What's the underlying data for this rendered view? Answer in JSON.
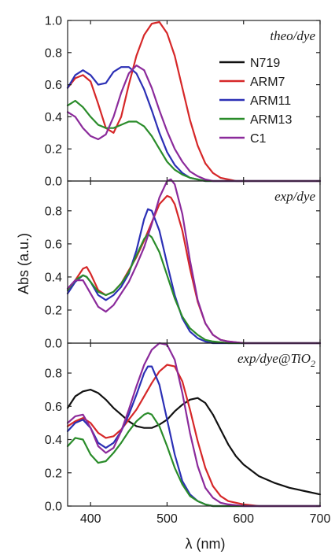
{
  "chart_data": {
    "type": "line",
    "xlabel": "λ (nm)",
    "ylabel": "Abs (a.u.)",
    "xlim": [
      370,
      700
    ],
    "xticks": [
      400,
      500,
      600,
      700
    ],
    "legend": [
      {
        "name": "N719",
        "color": "#111111"
      },
      {
        "name": "ARM7",
        "color": "#d62728"
      },
      {
        "name": "ARM11",
        "color": "#2b2fb5"
      },
      {
        "name": "ARM13",
        "color": "#2a8c2a"
      },
      {
        "name": "C1",
        "color": "#8b2a9b"
      }
    ],
    "legend_position": "top-right of top panel",
    "panels": [
      {
        "title": "theo/dye",
        "ylim": [
          0,
          1.0
        ],
        "yticks": [
          "0.0",
          "0.2",
          "0.4",
          "0.6",
          "0.8",
          "1.0"
        ],
        "series": [
          {
            "name": "ARM7",
            "x": [
              370,
              380,
              390,
              400,
              410,
              420,
              430,
              440,
              450,
              460,
              470,
              480,
              490,
              500,
              510,
              520,
              530,
              540,
              550,
              560,
              570,
              580,
              590,
              600,
              620,
              650,
              700
            ],
            "y": [
              0.58,
              0.64,
              0.66,
              0.62,
              0.48,
              0.33,
              0.3,
              0.4,
              0.6,
              0.78,
              0.91,
              0.98,
              0.99,
              0.92,
              0.78,
              0.58,
              0.38,
              0.22,
              0.11,
              0.05,
              0.02,
              0.01,
              0,
              0,
              0,
              0,
              0
            ]
          },
          {
            "name": "ARM11",
            "x": [
              370,
              380,
              390,
              400,
              410,
              420,
              430,
              440,
              450,
              460,
              470,
              480,
              490,
              500,
              510,
              520,
              530,
              540,
              550,
              560,
              570,
              580,
              600,
              700
            ],
            "y": [
              0.58,
              0.66,
              0.69,
              0.66,
              0.6,
              0.61,
              0.68,
              0.71,
              0.71,
              0.67,
              0.57,
              0.44,
              0.3,
              0.18,
              0.1,
              0.05,
              0.02,
              0.01,
              0,
              0,
              0,
              0,
              0,
              0
            ]
          },
          {
            "name": "ARM13",
            "x": [
              370,
              380,
              390,
              400,
              410,
              420,
              430,
              440,
              450,
              460,
              470,
              480,
              490,
              500,
              510,
              520,
              530,
              540,
              550,
              560,
              580,
              600,
              700
            ],
            "y": [
              0.47,
              0.5,
              0.46,
              0.4,
              0.35,
              0.33,
              0.33,
              0.35,
              0.37,
              0.37,
              0.34,
              0.28,
              0.2,
              0.12,
              0.07,
              0.04,
              0.02,
              0.01,
              0,
              0,
              0,
              0,
              0
            ]
          },
          {
            "name": "C1",
            "x": [
              370,
              380,
              390,
              400,
              410,
              420,
              430,
              440,
              450,
              460,
              470,
              480,
              490,
              500,
              510,
              520,
              530,
              540,
              550,
              560,
              570,
              580,
              600,
              700
            ],
            "y": [
              0.43,
              0.4,
              0.33,
              0.28,
              0.26,
              0.29,
              0.4,
              0.55,
              0.67,
              0.72,
              0.69,
              0.58,
              0.44,
              0.31,
              0.2,
              0.12,
              0.06,
              0.03,
              0.01,
              0,
              0,
              0,
              0,
              0
            ]
          }
        ]
      },
      {
        "title": "exp/dye",
        "ylim": [
          0,
          0.98
        ],
        "yticks": [
          "0.0",
          "0.2",
          "0.4",
          "0.6",
          "0.8"
        ],
        "series": [
          {
            "name": "ARM7",
            "x": [
              370,
              380,
              390,
              395,
              400,
              410,
              420,
              430,
              440,
              450,
              460,
              470,
              480,
              490,
              500,
              505,
              510,
              520,
              530,
              540,
              550,
              560,
              570,
              580,
              600,
              700
            ],
            "y": [
              0.3,
              0.38,
              0.45,
              0.46,
              0.42,
              0.32,
              0.29,
              0.31,
              0.36,
              0.44,
              0.52,
              0.62,
              0.73,
              0.84,
              0.89,
              0.88,
              0.84,
              0.68,
              0.45,
              0.25,
              0.12,
              0.05,
              0.02,
              0.01,
              0,
              0
            ]
          },
          {
            "name": "ARM11",
            "x": [
              370,
              380,
              390,
              395,
              400,
              410,
              420,
              430,
              440,
              450,
              460,
              470,
              475,
              480,
              490,
              500,
              510,
              520,
              530,
              540,
              550,
              560,
              580,
              600,
              700
            ],
            "y": [
              0.3,
              0.37,
              0.41,
              0.4,
              0.37,
              0.29,
              0.26,
              0.29,
              0.34,
              0.42,
              0.56,
              0.75,
              0.81,
              0.8,
              0.68,
              0.48,
              0.29,
              0.15,
              0.07,
              0.03,
              0.01,
              0,
              0,
              0,
              0
            ]
          },
          {
            "name": "ARM13",
            "x": [
              370,
              380,
              390,
              395,
              400,
              410,
              420,
              430,
              440,
              450,
              460,
              470,
              475,
              480,
              490,
              500,
              510,
              520,
              530,
              540,
              550,
              560,
              580,
              600,
              700
            ],
            "y": [
              0.32,
              0.38,
              0.41,
              0.4,
              0.37,
              0.31,
              0.29,
              0.31,
              0.36,
              0.43,
              0.53,
              0.63,
              0.66,
              0.64,
              0.55,
              0.41,
              0.27,
              0.16,
              0.09,
              0.05,
              0.02,
              0.01,
              0,
              0,
              0
            ]
          },
          {
            "name": "C1",
            "x": [
              370,
              380,
              390,
              400,
              410,
              420,
              430,
              440,
              450,
              460,
              470,
              480,
              490,
              500,
              505,
              510,
              520,
              530,
              540,
              550,
              560,
              570,
              580,
              600,
              700
            ],
            "y": [
              0.33,
              0.38,
              0.38,
              0.3,
              0.22,
              0.19,
              0.23,
              0.3,
              0.37,
              0.47,
              0.58,
              0.72,
              0.88,
              0.98,
              0.99,
              0.96,
              0.78,
              0.5,
              0.26,
              0.12,
              0.05,
              0.02,
              0.01,
              0,
              0
            ]
          }
        ]
      },
      {
        "title": "exp/dye@TiO",
        "title_subscript": "2",
        "ylim": [
          0,
          0.98
        ],
        "yticks": [
          "0.0",
          "0.2",
          "0.4",
          "0.6",
          "0.8"
        ],
        "series": [
          {
            "name": "N719",
            "x": [
              370,
              380,
              390,
              400,
              410,
              420,
              430,
              440,
              450,
              460,
              470,
              480,
              490,
              500,
              510,
              520,
              530,
              540,
              550,
              560,
              570,
              580,
              590,
              600,
              620,
              640,
              660,
              680,
              700
            ],
            "y": [
              0.59,
              0.66,
              0.69,
              0.7,
              0.68,
              0.64,
              0.59,
              0.55,
              0.51,
              0.48,
              0.47,
              0.47,
              0.49,
              0.52,
              0.57,
              0.61,
              0.64,
              0.65,
              0.62,
              0.55,
              0.46,
              0.37,
              0.3,
              0.25,
              0.18,
              0.14,
              0.11,
              0.09,
              0.07
            ]
          },
          {
            "name": "ARM7",
            "x": [
              370,
              380,
              390,
              400,
              410,
              420,
              430,
              440,
              450,
              460,
              470,
              480,
              490,
              500,
              510,
              520,
              530,
              540,
              550,
              560,
              570,
              580,
              600,
              620,
              700
            ],
            "y": [
              0.48,
              0.51,
              0.53,
              0.5,
              0.44,
              0.41,
              0.42,
              0.46,
              0.52,
              0.58,
              0.66,
              0.74,
              0.81,
              0.85,
              0.84,
              0.75,
              0.58,
              0.39,
              0.23,
              0.12,
              0.06,
              0.03,
              0.01,
              0,
              0
            ]
          },
          {
            "name": "ARM11",
            "x": [
              370,
              380,
              390,
              400,
              410,
              420,
              430,
              440,
              450,
              460,
              470,
              475,
              480,
              490,
              500,
              510,
              520,
              530,
              540,
              550,
              560,
              580,
              600,
              700
            ],
            "y": [
              0.45,
              0.5,
              0.52,
              0.47,
              0.38,
              0.35,
              0.38,
              0.45,
              0.55,
              0.67,
              0.8,
              0.84,
              0.84,
              0.73,
              0.52,
              0.31,
              0.15,
              0.07,
              0.03,
              0.01,
              0,
              0,
              0,
              0
            ]
          },
          {
            "name": "ARM13",
            "x": [
              370,
              380,
              390,
              400,
              410,
              420,
              430,
              440,
              450,
              460,
              470,
              475,
              480,
              490,
              500,
              510,
              520,
              530,
              540,
              550,
              560,
              580,
              600,
              700
            ],
            "y": [
              0.36,
              0.41,
              0.4,
              0.31,
              0.26,
              0.27,
              0.32,
              0.38,
              0.45,
              0.51,
              0.55,
              0.56,
              0.55,
              0.48,
              0.36,
              0.23,
              0.13,
              0.06,
              0.03,
              0.01,
              0,
              0,
              0,
              0
            ]
          },
          {
            "name": "C1",
            "x": [
              370,
              380,
              390,
              400,
              410,
              420,
              430,
              440,
              450,
              460,
              470,
              480,
              490,
              500,
              510,
              520,
              530,
              540,
              550,
              560,
              570,
              580,
              600,
              700
            ],
            "y": [
              0.5,
              0.54,
              0.55,
              0.47,
              0.36,
              0.32,
              0.35,
              0.45,
              0.58,
              0.72,
              0.85,
              0.94,
              0.98,
              0.97,
              0.88,
              0.68,
              0.44,
              0.24,
              0.11,
              0.05,
              0.02,
              0.01,
              0,
              0
            ]
          }
        ]
      }
    ]
  }
}
